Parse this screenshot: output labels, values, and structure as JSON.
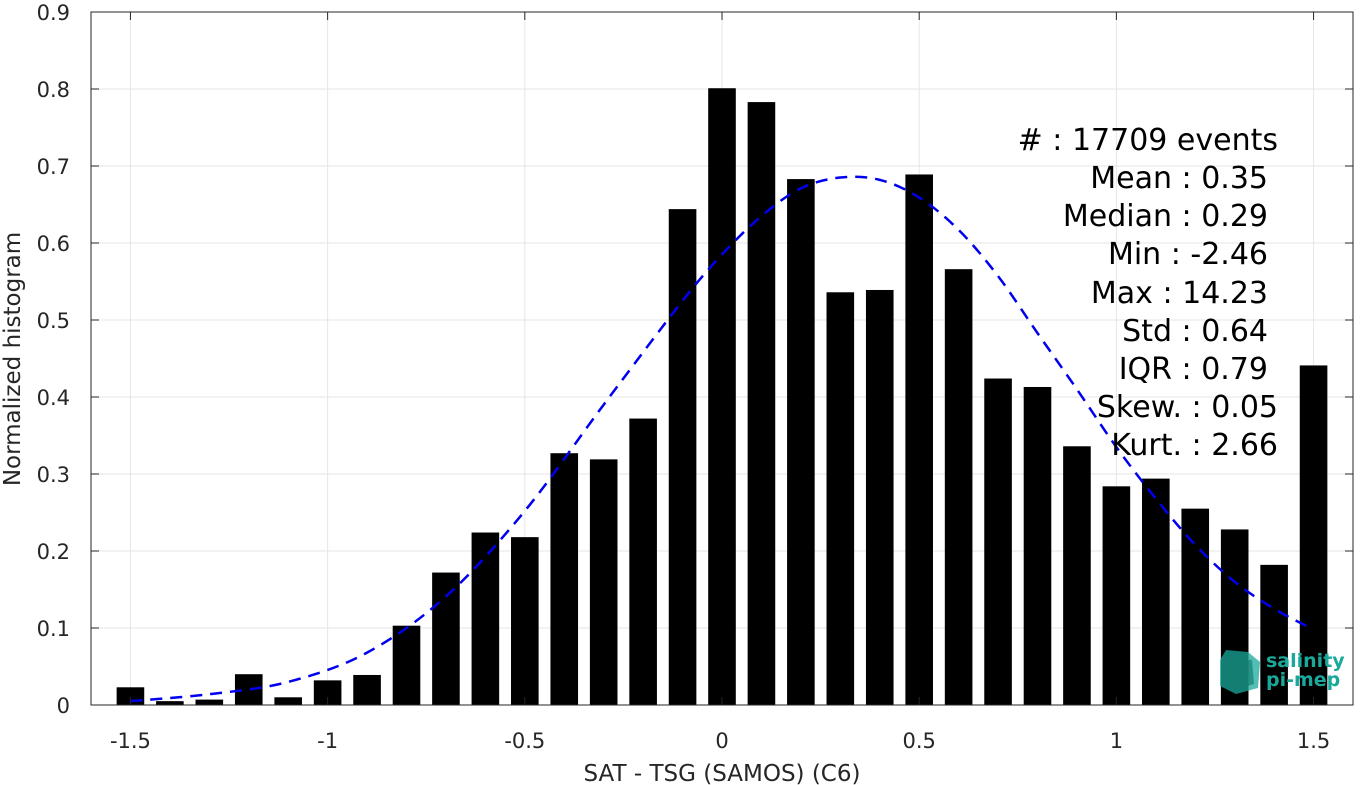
{
  "chart_data": {
    "type": "bar",
    "xlabel": "SAT - TSG (SAMOS) (C6)",
    "ylabel": "Normalized histogram",
    "xlim": [
      -1.6,
      1.6
    ],
    "ylim": [
      0,
      0.9
    ],
    "grid": true,
    "x_ticks": [
      {
        "value": -1.5,
        "label": "-1.5"
      },
      {
        "value": -1.0,
        "label": "-1"
      },
      {
        "value": -0.5,
        "label": "-0.5"
      },
      {
        "value": 0.0,
        "label": "0"
      },
      {
        "value": 0.5,
        "label": "0.5"
      },
      {
        "value": 1.0,
        "label": "1"
      },
      {
        "value": 1.5,
        "label": "1.5"
      }
    ],
    "y_ticks": [
      {
        "value": 0,
        "label": "0"
      },
      {
        "value": 0.1,
        "label": "0.1"
      },
      {
        "value": 0.2,
        "label": "0.2"
      },
      {
        "value": 0.3,
        "label": "0.3"
      },
      {
        "value": 0.4,
        "label": "0.4"
      },
      {
        "value": 0.5,
        "label": "0.5"
      },
      {
        "value": 0.6,
        "label": "0.6"
      },
      {
        "value": 0.7,
        "label": "0.7"
      },
      {
        "value": 0.8,
        "label": "0.8"
      },
      {
        "value": 0.9,
        "label": "0.9"
      }
    ],
    "bar_width": 0.07,
    "bar_color": "#000000",
    "x": [
      -1.5,
      -1.4,
      -1.3,
      -1.2,
      -1.1,
      -1.0,
      -0.9,
      -0.8,
      -0.7,
      -0.6,
      -0.5,
      -0.4,
      -0.3,
      -0.2,
      -0.1,
      0.0,
      0.1,
      0.2,
      0.3,
      0.4,
      0.5,
      0.6,
      0.7,
      0.8,
      0.9,
      1.0,
      1.1,
      1.2,
      1.3,
      1.4,
      1.5
    ],
    "values": [
      0.023,
      0.005,
      0.007,
      0.04,
      0.01,
      0.032,
      0.039,
      0.103,
      0.172,
      0.224,
      0.218,
      0.327,
      0.319,
      0.372,
      0.644,
      0.801,
      0.783,
      0.683,
      0.536,
      0.539,
      0.689,
      0.566,
      0.424,
      0.413,
      0.336,
      0.284,
      0.294,
      0.255,
      0.228,
      0.182,
      0.441
    ],
    "fit_curve": {
      "style": "dashed",
      "color": "#0000ee",
      "x": [
        -1.5,
        -1.3,
        -1.1,
        -0.9,
        -0.7,
        -0.5,
        -0.3,
        -0.1,
        0.0,
        0.1,
        0.2,
        0.3,
        0.4,
        0.5,
        0.6,
        0.7,
        0.8,
        0.9,
        1.0,
        1.1,
        1.2,
        1.3,
        1.4,
        1.5
      ],
      "y": [
        0.005,
        0.014,
        0.03,
        0.068,
        0.141,
        0.252,
        0.39,
        0.525,
        0.585,
        0.635,
        0.671,
        0.685,
        0.682,
        0.659,
        0.617,
        0.557,
        0.483,
        0.41,
        0.335,
        0.268,
        0.208,
        0.16,
        0.125,
        0.098
      ]
    },
    "stats": [
      "#  : 17709 events",
      "Mean : 0.35",
      "Median : 0.29",
      "Min : -2.46",
      "Max : 14.23",
      "Std : 0.64",
      "IQR : 0.79",
      "Skew. : 0.05",
      "Kurt. : 2.66"
    ]
  },
  "logo": {
    "line1": "salinity",
    "line2": "pi-mep",
    "color": "#1aa89a"
  }
}
